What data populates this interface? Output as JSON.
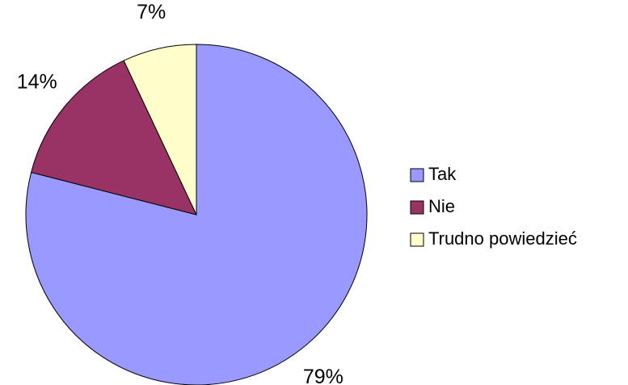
{
  "chart_data": {
    "type": "pie",
    "categories": [
      "Tak",
      "Nie",
      "Trudno powiedzieć"
    ],
    "values": [
      79,
      14,
      7
    ],
    "value_labels": [
      "79%",
      "14%",
      "7%"
    ],
    "colors": [
      "#9999ff",
      "#993366",
      "#ffffcc"
    ],
    "legend": "right"
  }
}
